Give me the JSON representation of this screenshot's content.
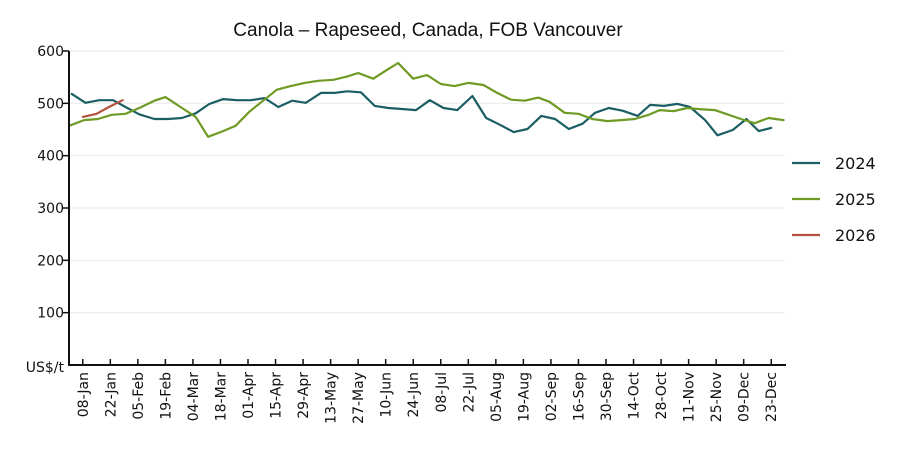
{
  "chart_data": {
    "type": "line",
    "title": "Canola – Rapeseed, Canada, FOB Vancouver",
    "xlabel": "",
    "ylabel": "US$/t",
    "ylim": [
      0,
      600
    ],
    "yticks": [
      100,
      200,
      300,
      400,
      500,
      600
    ],
    "grid": true,
    "legend_position": "right",
    "x_domain": {
      "start_week": 0,
      "end_week": 52
    },
    "x_tick_labels": [
      "08-Jan",
      "22-Jan",
      "05-Feb",
      "19-Feb",
      "04-Mar",
      "18-Mar",
      "01-Apr",
      "15-Apr",
      "29-Apr",
      "13-May",
      "27-May",
      "10-Jun",
      "24-Jun",
      "08-Jul",
      "22-Jul",
      "05-Aug",
      "19-Aug",
      "02-Sep",
      "16-Sep",
      "30-Sep",
      "14-Oct",
      "28-Oct",
      "11-Nov",
      "25-Nov",
      "09-Dec",
      "23-Dec"
    ],
    "x_tick_weeks": [
      1,
      3,
      5,
      7,
      9,
      11,
      13,
      15,
      17,
      19,
      21,
      23,
      25,
      27,
      29,
      31,
      33,
      35,
      37,
      39,
      41,
      43,
      45,
      47,
      49,
      51
    ],
    "series": [
      {
        "name": "2024",
        "color": "#1b5e63",
        "weeks": [
          0.2,
          1.2,
          2.2,
          3.2,
          4.1,
          5.1,
          6.2,
          7.2,
          8.2,
          9.2,
          10.2,
          11.2,
          12.2,
          13.2,
          14.2,
          15.2,
          16.2,
          17.2,
          18.3,
          19.3,
          20.2,
          21.2,
          22.2,
          23.2,
          24.3,
          25.2,
          26.2,
          27.2,
          28.2,
          29.3,
          30.3,
          31.3,
          32.3,
          33.3,
          34.3,
          35.3,
          36.3,
          37.3,
          38.2,
          39.2,
          40.2,
          41.3,
          42.2,
          43.2,
          44.2,
          45.1,
          46.2,
          47.1,
          48.2,
          49.2,
          50.1,
          51.0
        ],
        "values": [
          518,
          501,
          506,
          506,
          493,
          479,
          470,
          470,
          472,
          481,
          499,
          508,
          506,
          506,
          510,
          493,
          505,
          501,
          520,
          520,
          523,
          521,
          495,
          491,
          489,
          487,
          506,
          491,
          487,
          514,
          472,
          459,
          445,
          451,
          476,
          470,
          451,
          461,
          482,
          491,
          486,
          476,
          497,
          495,
          499,
          493,
          468,
          439,
          449,
          470,
          447,
          453
        ]
      },
      {
        "name": "2025",
        "color": "#6f9a24",
        "weeks": [
          0.0,
          1.1,
          2.1,
          3.1,
          4.1,
          5.1,
          6.2,
          7.0,
          8.1,
          9.2,
          10.1,
          11.1,
          12.1,
          13.1,
          14.1,
          15.1,
          16.1,
          17.1,
          18.1,
          19.2,
          20.2,
          21.0,
          22.1,
          23.1,
          23.9,
          25.0,
          26.0,
          27.0,
          28.0,
          29.0,
          30.1,
          31.1,
          32.1,
          33.1,
          34.1,
          34.9,
          36.0,
          37.0,
          38.0,
          39.1,
          40.1,
          41.1,
          42.1,
          42.9,
          43.9,
          44.9,
          45.8,
          46.9,
          47.7,
          48.8,
          49.8,
          50.8,
          51.9
        ],
        "values": [
          457,
          468,
          470,
          478,
          480,
          491,
          505,
          512,
          493,
          474,
          436,
          446,
          457,
          484,
          505,
          526,
          533,
          539,
          543,
          545,
          551,
          558,
          547,
          564,
          577,
          547,
          554,
          537,
          533,
          539,
          535,
          520,
          507,
          505,
          511,
          503,
          482,
          480,
          470,
          466,
          468,
          470,
          478,
          487,
          485,
          491,
          489,
          487,
          480,
          470,
          462,
          472,
          468
        ]
      },
      {
        "name": "2026",
        "color": "#b5533c",
        "weeks": [
          1.0,
          2.0,
          2.9,
          3.9
        ],
        "values": [
          474,
          480,
          493,
          506
        ]
      }
    ]
  }
}
